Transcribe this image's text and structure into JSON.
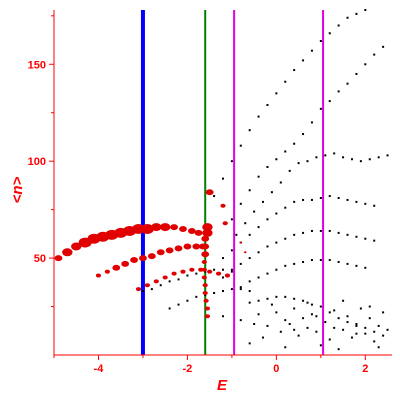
{
  "chart_data": {
    "type": "scatter",
    "xlabel": "E",
    "ylabel": "<n>",
    "xlim": [
      -5.0,
      2.6
    ],
    "ylim": [
      0,
      178
    ],
    "x_ticks": [
      -4,
      -2,
      0,
      2
    ],
    "x_tick_labels": [
      "-4",
      "-2",
      "0",
      "2"
    ],
    "y_ticks": [
      50,
      100,
      150
    ],
    "y_tick_labels": [
      "50",
      "100",
      "150"
    ],
    "grid": false,
    "legend": "none",
    "colors": {
      "axis": "#ff0000",
      "red_points": "#e00000",
      "black_points": "#000000",
      "blue_line": "#0000ff",
      "green_line": "#008000",
      "magenta_line": "#e000e0"
    },
    "vertical_lines": [
      {
        "x": -3.0,
        "color": "#0000ff",
        "width": "thick"
      },
      {
        "x": -1.6,
        "color": "#008000",
        "width": "thin"
      },
      {
        "x": -0.95,
        "color": "#e000e0",
        "width": "thin"
      },
      {
        "x": 1.05,
        "color": "#e000e0",
        "width": "thin"
      }
    ],
    "red_series": [
      {
        "points": [
          [
            -4.9,
            50
          ],
          [
            -4.7,
            53
          ],
          [
            -4.5,
            56
          ],
          [
            -4.3,
            58
          ],
          [
            -4.1,
            60
          ],
          [
            -3.9,
            61
          ],
          [
            -3.7,
            62
          ],
          [
            -3.5,
            63
          ],
          [
            -3.3,
            64
          ],
          [
            -3.1,
            65
          ],
          [
            -2.9,
            65
          ],
          [
            -2.7,
            66
          ],
          [
            -2.5,
            66
          ],
          [
            -2.3,
            66
          ],
          [
            -2.1,
            65
          ],
          [
            -1.9,
            64
          ],
          [
            -1.75,
            63
          ]
        ],
        "sizes": [
          3,
          4,
          4,
          5,
          5,
          5,
          5,
          5,
          5,
          5,
          5,
          4,
          4,
          3,
          3,
          3,
          3
        ]
      },
      {
        "points": [
          [
            -4.0,
            41
          ],
          [
            -3.8,
            43
          ],
          [
            -3.6,
            45
          ],
          [
            -3.4,
            47
          ],
          [
            -3.2,
            49
          ],
          [
            -3.0,
            50
          ],
          [
            -2.8,
            51
          ],
          [
            -2.6,
            53
          ],
          [
            -2.4,
            54
          ],
          [
            -2.2,
            55
          ],
          [
            -2.0,
            56
          ],
          [
            -1.8,
            56
          ],
          [
            -1.65,
            56
          ]
        ],
        "sizes": [
          2,
          2,
          3,
          3,
          3,
          3,
          3,
          3,
          3,
          3,
          3,
          3,
          3
        ]
      },
      {
        "points": [
          [
            -3.1,
            34
          ],
          [
            -2.9,
            36
          ],
          [
            -2.7,
            38
          ],
          [
            -2.5,
            40
          ],
          [
            -2.3,
            42
          ],
          [
            -2.1,
            43
          ],
          [
            -1.9,
            44
          ],
          [
            -1.7,
            44
          ],
          [
            -1.5,
            43
          ],
          [
            -1.3,
            42
          ],
          [
            -1.1,
            41
          ]
        ],
        "sizes": [
          2,
          2,
          2,
          2,
          2,
          2,
          2,
          2,
          2,
          2,
          2
        ]
      },
      {
        "points": [
          [
            -1.55,
            63
          ],
          [
            -1.55,
            66
          ],
          [
            -1.6,
            60
          ],
          [
            -1.6,
            56
          ],
          [
            -1.6,
            52
          ],
          [
            -1.62,
            48
          ],
          [
            -1.62,
            44
          ],
          [
            -1.62,
            40
          ],
          [
            -1.6,
            36
          ],
          [
            -1.6,
            32
          ],
          [
            -1.58,
            28
          ],
          [
            -1.55,
            24
          ],
          [
            -1.55,
            20
          ],
          [
            -1.5,
            84
          ],
          [
            -1.2,
            77
          ],
          [
            -1.15,
            68
          ],
          [
            -0.8,
            58
          ],
          [
            -0.7,
            53
          ]
        ],
        "sizes": [
          4,
          4,
          3,
          3,
          3,
          2,
          2,
          2,
          2,
          2,
          2,
          2,
          2,
          3,
          2,
          2,
          1,
          1
        ]
      }
    ],
    "black_series": [
      {
        "points": [
          [
            -1.4,
            82
          ],
          [
            -1.2,
            91
          ],
          [
            -1.0,
            100
          ],
          [
            -0.8,
            108
          ],
          [
            -0.6,
            116
          ],
          [
            -0.4,
            123
          ],
          [
            -0.2,
            129
          ],
          [
            0.0,
            135
          ],
          [
            0.2,
            141
          ],
          [
            0.4,
            147
          ],
          [
            0.6,
            152
          ],
          [
            0.8,
            157
          ],
          [
            1.0,
            162
          ],
          [
            1.2,
            166
          ],
          [
            1.4,
            170
          ],
          [
            1.6,
            174
          ],
          [
            1.8,
            176
          ],
          [
            2.0,
            178
          ],
          [
            2.2,
            180
          ]
        ]
      },
      {
        "points": [
          [
            -1.0,
            70
          ],
          [
            -0.8,
            78
          ],
          [
            -0.6,
            85
          ],
          [
            -0.4,
            92
          ],
          [
            -0.2,
            97
          ],
          [
            0.0,
            101
          ],
          [
            0.2,
            105
          ],
          [
            0.4,
            109
          ],
          [
            0.6,
            114
          ],
          [
            0.8,
            120
          ],
          [
            1.0,
            127
          ],
          [
            1.2,
            131
          ],
          [
            1.4,
            136
          ],
          [
            1.6,
            140
          ],
          [
            1.8,
            145
          ],
          [
            2.0,
            150
          ],
          [
            2.2,
            155
          ],
          [
            2.4,
            159
          ]
        ]
      },
      {
        "points": [
          [
            -0.9,
            62
          ],
          [
            -0.7,
            68
          ],
          [
            -0.5,
            74
          ],
          [
            -0.3,
            79
          ],
          [
            -0.1,
            84
          ],
          [
            0.1,
            89
          ],
          [
            0.3,
            95
          ],
          [
            0.5,
            99
          ],
          [
            0.7,
            100
          ],
          [
            0.9,
            102
          ],
          [
            1.1,
            103
          ],
          [
            1.3,
            104
          ],
          [
            1.5,
            102
          ],
          [
            1.7,
            101
          ],
          [
            1.9,
            100
          ],
          [
            2.1,
            101
          ],
          [
            2.3,
            102
          ],
          [
            2.5,
            103
          ]
        ]
      },
      {
        "points": [
          [
            -1.2,
            50
          ],
          [
            -1.0,
            54
          ],
          [
            -0.8,
            58
          ],
          [
            -0.6,
            62
          ],
          [
            -0.4,
            66
          ],
          [
            -0.2,
            70
          ],
          [
            0.0,
            73
          ],
          [
            0.2,
            76
          ],
          [
            0.4,
            79
          ],
          [
            0.6,
            80
          ],
          [
            0.8,
            80
          ],
          [
            1.0,
            81
          ],
          [
            1.2,
            82
          ],
          [
            1.4,
            81
          ],
          [
            1.6,
            80
          ],
          [
            1.8,
            79
          ],
          [
            2.0,
            78
          ],
          [
            2.2,
            77
          ]
        ]
      },
      {
        "points": [
          [
            -1.2,
            40
          ],
          [
            -1.0,
            44
          ],
          [
            -0.8,
            47
          ],
          [
            -0.6,
            50
          ],
          [
            -0.4,
            53
          ],
          [
            -0.2,
            56
          ],
          [
            0.0,
            58
          ],
          [
            0.2,
            60
          ],
          [
            0.4,
            62
          ],
          [
            0.6,
            63
          ],
          [
            0.8,
            64
          ],
          [
            1.0,
            64
          ],
          [
            1.2,
            64
          ],
          [
            1.4,
            63
          ],
          [
            1.6,
            62
          ],
          [
            1.8,
            61
          ],
          [
            2.0,
            60
          ],
          [
            2.2,
            59
          ]
        ]
      },
      {
        "points": [
          [
            -0.8,
            35
          ],
          [
            -0.6,
            38
          ],
          [
            -0.4,
            40
          ],
          [
            -0.2,
            42
          ],
          [
            0.0,
            44
          ],
          [
            0.2,
            46
          ],
          [
            0.4,
            47
          ],
          [
            0.6,
            48
          ],
          [
            0.8,
            49
          ],
          [
            1.0,
            49
          ],
          [
            1.2,
            49
          ],
          [
            1.4,
            48
          ],
          [
            1.6,
            47
          ],
          [
            1.8,
            46
          ],
          [
            2.0,
            45
          ]
        ]
      },
      {
        "points": [
          [
            -3.0,
            33
          ],
          [
            -2.8,
            34
          ],
          [
            -2.6,
            36
          ],
          [
            -2.4,
            38
          ],
          [
            -2.2,
            39
          ],
          [
            -2.0,
            41
          ],
          [
            -1.8,
            42
          ],
          [
            -1.6,
            43
          ],
          [
            -1.4,
            44
          ],
          [
            -1.2,
            44
          ],
          [
            -1.0,
            43
          ]
        ]
      },
      {
        "points": [
          [
            -2.4,
            24
          ],
          [
            -2.2,
            26
          ],
          [
            -2.0,
            28
          ],
          [
            -1.8,
            30
          ],
          [
            -1.6,
            31
          ],
          [
            -1.4,
            32
          ],
          [
            -1.2,
            33
          ],
          [
            -1.0,
            34
          ],
          [
            -0.8,
            34
          ],
          [
            -0.6,
            33
          ]
        ]
      },
      {
        "points": [
          [
            -0.6,
            27
          ],
          [
            -0.4,
            28
          ],
          [
            -0.2,
            29
          ],
          [
            0.0,
            30
          ],
          [
            0.2,
            30
          ],
          [
            0.4,
            29
          ],
          [
            0.6,
            28
          ],
          [
            0.8,
            26
          ],
          [
            1.0,
            25
          ],
          [
            1.2,
            22
          ],
          [
            1.4,
            19
          ],
          [
            1.6,
            17
          ],
          [
            1.8,
            15
          ],
          [
            2.0,
            14
          ],
          [
            2.2,
            12
          ],
          [
            2.4,
            10
          ]
        ]
      },
      {
        "points": [
          [
            -1.2,
            20
          ],
          [
            -0.8,
            18
          ],
          [
            -0.4,
            21
          ],
          [
            -0.2,
            15
          ],
          [
            0.0,
            22
          ],
          [
            0.1,
            12
          ],
          [
            0.2,
            18
          ],
          [
            0.3,
            16
          ],
          [
            0.4,
            24
          ],
          [
            0.5,
            10
          ],
          [
            0.6,
            19
          ],
          [
            0.7,
            14
          ],
          [
            0.8,
            21
          ],
          [
            0.9,
            12
          ],
          [
            1.1,
            17
          ],
          [
            1.2,
            8
          ],
          [
            1.3,
            23
          ],
          [
            1.5,
            13
          ],
          [
            1.6,
            20
          ],
          [
            1.7,
            9
          ],
          [
            1.8,
            16
          ],
          [
            1.9,
            24
          ],
          [
            2.0,
            11
          ],
          [
            2.1,
            19
          ],
          [
            2.2,
            7
          ],
          [
            2.3,
            15
          ],
          [
            2.4,
            22
          ],
          [
            2.5,
            13
          ],
          [
            -0.3,
            9
          ],
          [
            -0.6,
            6
          ],
          [
            0.2,
            4
          ],
          [
            1.0,
            5
          ],
          [
            1.4,
            3
          ],
          [
            2.3,
            4
          ],
          [
            -0.1,
            26
          ],
          [
            0.7,
            27
          ],
          [
            1.5,
            28
          ],
          [
            0.4,
            13
          ],
          [
            0.9,
            20
          ],
          [
            1.3,
            14
          ],
          [
            1.8,
            11
          ],
          [
            2.1,
            25
          ],
          [
            -0.5,
            16
          ]
        ]
      }
    ]
  }
}
